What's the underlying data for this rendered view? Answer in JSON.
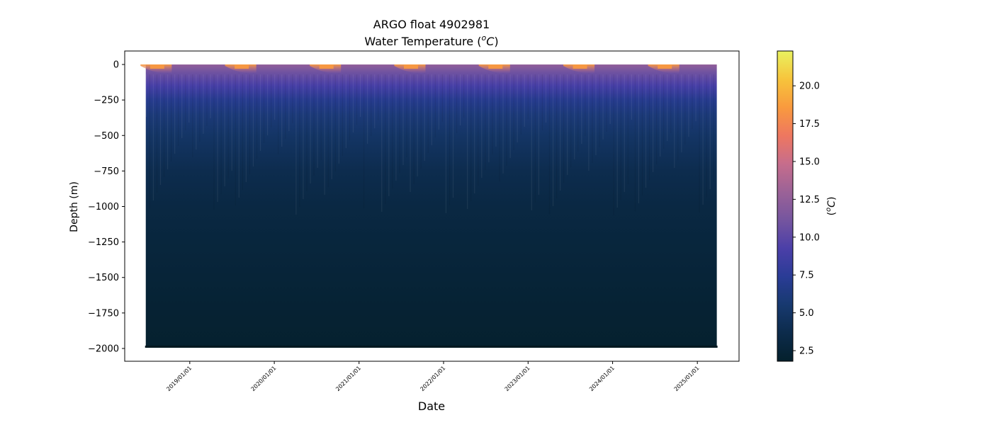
{
  "chart_data": {
    "type": "heatmap",
    "title_line1": "ARGO float 4902981",
    "title_line2_text": "Water Temperature (",
    "title_unit_base": "o",
    "title_unit_letter": "C",
    "title_close": ")",
    "xlabel": "Date",
    "ylabel": "Depth (m)",
    "colorbar_label_open": "(",
    "colorbar_label_sup": "o",
    "colorbar_label_letter": "C",
    "colorbar_label_close": ")",
    "x_ticks": [
      "2019/01/01",
      "2020/01/01",
      "2021/01/01",
      "2022/01/01",
      "2023/01/01",
      "2024/01/01",
      "2025/01/01"
    ],
    "y_ticks": [
      0,
      -250,
      -500,
      -750,
      -1000,
      -1250,
      -1500,
      -1750,
      -2000
    ],
    "y_tick_labels": [
      "0",
      "−250",
      "−500",
      "−750",
      "−1000",
      "−1250",
      "−1500",
      "−1750",
      "−2000"
    ],
    "ylim": [
      -2090,
      95
    ],
    "xlim": [
      "2018/03/26",
      "2025/06/30"
    ],
    "data_start": "2018/06/25",
    "data_end": "2025/03/26",
    "depth_range": [
      0,
      -1990
    ],
    "colorbar_ticks": [
      2.5,
      5.0,
      7.5,
      10.0,
      12.5,
      15.0,
      17.5,
      20.0
    ],
    "colorbar_tick_labels": [
      "2.5",
      "5.0",
      "7.5",
      "10.0",
      "12.5",
      "15.0",
      "17.5",
      "20.0"
    ],
    "colorbar_range": [
      1.8,
      22.3
    ],
    "colormap": "thermal",
    "colormap_stops": [
      "#04202c",
      "#0c2b4b",
      "#17396f",
      "#2a3c96",
      "#4b3fa8",
      "#75559f",
      "#9b6297",
      "#c66d8c",
      "#ee7760",
      "#f99a3e",
      "#f7c43c",
      "#e9f25f"
    ],
    "temperature_profile": [
      {
        "depth": 0,
        "temp": 12.5
      },
      {
        "depth": -50,
        "temp": 11.0
      },
      {
        "depth": -100,
        "temp": 10.0
      },
      {
        "depth": -150,
        "temp": 9.0
      },
      {
        "depth": -250,
        "temp": 7.0
      },
      {
        "depth": -350,
        "temp": 6.0
      },
      {
        "depth": -500,
        "temp": 5.0
      },
      {
        "depth": -750,
        "temp": 3.8
      },
      {
        "depth": -1000,
        "temp": 3.2
      },
      {
        "depth": -1250,
        "temp": 2.8
      },
      {
        "depth": -1500,
        "temp": 2.5
      },
      {
        "depth": -1750,
        "temp": 2.2
      },
      {
        "depth": -2000,
        "temp": 2.0
      }
    ],
    "summer_peak_months": [
      "2018/08",
      "2019/08",
      "2020/08",
      "2021/08",
      "2022/08",
      "2023/08",
      "2024/08"
    ],
    "grid": false,
    "legend": "colorbar-right"
  }
}
